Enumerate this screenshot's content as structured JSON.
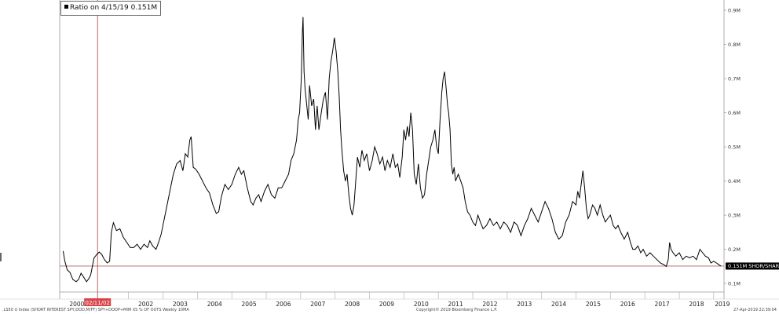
{
  "legend": {
    "label": "Ratio on 4/15/19 0.151M"
  },
  "cursor": {
    "date_label": "02/11/02"
  },
  "last_value": {
    "label": "0.151M SHOR/SHAR"
  },
  "footer": {
    "left": ".LS50 U Index (SHORT INTEREST SPY,DOD,M/FF) SPY+DOOP+MIM XS % OF OUTS  Weekly 10MA",
    "center": "Copyright© 2019 Bloomberg Finance L.P.",
    "right": "27-Apr-2019 22:39:04"
  },
  "chart_data": {
    "type": "line",
    "title": "",
    "xlabel": "",
    "ylabel": "",
    "xlim": [
      2000,
      2019.3
    ],
    "ylim": [
      0.075,
      0.93
    ],
    "y_ticks": [
      {
        "value": 0.1,
        "label": "0.1M"
      },
      {
        "value": 0.2,
        "label": "0.2M"
      },
      {
        "value": 0.3,
        "label": "0.3M"
      },
      {
        "value": 0.4,
        "label": "0.4M"
      },
      {
        "value": 0.5,
        "label": "0.5M"
      },
      {
        "value": 0.6,
        "label": "0.6M"
      },
      {
        "value": 0.7,
        "label": "0.7M"
      },
      {
        "value": 0.8,
        "label": "0.8M"
      },
      {
        "value": 0.9,
        "label": "0.9M"
      }
    ],
    "x_ticks": [
      {
        "value": 2000,
        "label": "2000"
      },
      {
        "value": 2002,
        "label": "2002"
      },
      {
        "value": 2003,
        "label": "2003"
      },
      {
        "value": 2004,
        "label": "2004"
      },
      {
        "value": 2005,
        "label": "2005"
      },
      {
        "value": 2006,
        "label": "2006"
      },
      {
        "value": 2007,
        "label": "2007"
      },
      {
        "value": 2008,
        "label": "2008"
      },
      {
        "value": 2009,
        "label": "2009"
      },
      {
        "value": 2010,
        "label": "2010"
      },
      {
        "value": 2011,
        "label": "2011"
      },
      {
        "value": 2012,
        "label": "2012"
      },
      {
        "value": 2013,
        "label": "2013"
      },
      {
        "value": 2014,
        "label": "2014"
      },
      {
        "value": 2015,
        "label": "2015"
      },
      {
        "value": 2016,
        "label": "2016"
      },
      {
        "value": 2017,
        "label": "2017"
      },
      {
        "value": 2018,
        "label": "2018"
      },
      {
        "value": 2019,
        "label": "2019"
      }
    ],
    "cursor_x": 2001.1,
    "reference_line": 0.151,
    "series": [
      {
        "points": [
          [
            2000.1,
            0.195
          ],
          [
            2000.15,
            0.165
          ],
          [
            2000.22,
            0.14
          ],
          [
            2000.3,
            0.132
          ],
          [
            2000.38,
            0.112
          ],
          [
            2000.48,
            0.105
          ],
          [
            2000.55,
            0.112
          ],
          [
            2000.62,
            0.13
          ],
          [
            2000.7,
            0.118
          ],
          [
            2000.78,
            0.105
          ],
          [
            2000.85,
            0.115
          ],
          [
            2000.9,
            0.125
          ],
          [
            2000.95,
            0.15
          ],
          [
            2001.0,
            0.175
          ],
          [
            2001.08,
            0.185
          ],
          [
            2001.15,
            0.192
          ],
          [
            2001.22,
            0.185
          ],
          [
            2001.3,
            0.17
          ],
          [
            2001.38,
            0.16
          ],
          [
            2001.45,
            0.165
          ],
          [
            2001.5,
            0.25
          ],
          [
            2001.56,
            0.278
          ],
          [
            2001.65,
            0.255
          ],
          [
            2001.75,
            0.26
          ],
          [
            2001.85,
            0.235
          ],
          [
            2001.95,
            0.22
          ],
          [
            2002.05,
            0.205
          ],
          [
            2002.15,
            0.205
          ],
          [
            2002.25,
            0.215
          ],
          [
            2002.35,
            0.2
          ],
          [
            2002.45,
            0.215
          ],
          [
            2002.55,
            0.205
          ],
          [
            2002.62,
            0.225
          ],
          [
            2002.7,
            0.21
          ],
          [
            2002.8,
            0.2
          ],
          [
            2002.88,
            0.222
          ],
          [
            2002.95,
            0.245
          ],
          [
            2003.0,
            0.27
          ],
          [
            2003.1,
            0.32
          ],
          [
            2003.2,
            0.37
          ],
          [
            2003.3,
            0.42
          ],
          [
            2003.4,
            0.45
          ],
          [
            2003.5,
            0.46
          ],
          [
            2003.58,
            0.43
          ],
          [
            2003.65,
            0.48
          ],
          [
            2003.72,
            0.47
          ],
          [
            2003.78,
            0.52
          ],
          [
            2003.82,
            0.53
          ],
          [
            2003.88,
            0.44
          ],
          [
            2003.95,
            0.435
          ],
          [
            2004.05,
            0.42
          ],
          [
            2004.15,
            0.4
          ],
          [
            2004.25,
            0.38
          ],
          [
            2004.35,
            0.365
          ],
          [
            2004.45,
            0.33
          ],
          [
            2004.55,
            0.305
          ],
          [
            2004.62,
            0.31
          ],
          [
            2004.7,
            0.355
          ],
          [
            2004.8,
            0.39
          ],
          [
            2004.9,
            0.375
          ],
          [
            2005.0,
            0.39
          ],
          [
            2005.1,
            0.42
          ],
          [
            2005.2,
            0.44
          ],
          [
            2005.28,
            0.42
          ],
          [
            2005.35,
            0.43
          ],
          [
            2005.45,
            0.38
          ],
          [
            2005.55,
            0.34
          ],
          [
            2005.62,
            0.33
          ],
          [
            2005.7,
            0.35
          ],
          [
            2005.78,
            0.36
          ],
          [
            2005.85,
            0.34
          ],
          [
            2005.95,
            0.37
          ],
          [
            2006.05,
            0.39
          ],
          [
            2006.15,
            0.36
          ],
          [
            2006.25,
            0.35
          ],
          [
            2006.35,
            0.38
          ],
          [
            2006.45,
            0.38
          ],
          [
            2006.55,
            0.4
          ],
          [
            2006.65,
            0.42
          ],
          [
            2006.72,
            0.46
          ],
          [
            2006.8,
            0.48
          ],
          [
            2006.88,
            0.52
          ],
          [
            2006.93,
            0.58
          ],
          [
            2006.97,
            0.6
          ],
          [
            2007.02,
            0.7
          ],
          [
            2007.05,
            0.83
          ],
          [
            2007.07,
            0.88
          ],
          [
            2007.1,
            0.72
          ],
          [
            2007.13,
            0.67
          ],
          [
            2007.18,
            0.62
          ],
          [
            2007.22,
            0.58
          ],
          [
            2007.26,
            0.68
          ],
          [
            2007.32,
            0.62
          ],
          [
            2007.38,
            0.64
          ],
          [
            2007.43,
            0.55
          ],
          [
            2007.48,
            0.62
          ],
          [
            2007.53,
            0.55
          ],
          [
            2007.6,
            0.6
          ],
          [
            2007.66,
            0.64
          ],
          [
            2007.72,
            0.66
          ],
          [
            2007.78,
            0.58
          ],
          [
            2007.83,
            0.7
          ],
          [
            2007.88,
            0.75
          ],
          [
            2007.93,
            0.78
          ],
          [
            2007.98,
            0.82
          ],
          [
            2008.03,
            0.78
          ],
          [
            2008.08,
            0.72
          ],
          [
            2008.12,
            0.65
          ],
          [
            2008.16,
            0.55
          ],
          [
            2008.2,
            0.49
          ],
          [
            2008.25,
            0.43
          ],
          [
            2008.3,
            0.4
          ],
          [
            2008.35,
            0.42
          ],
          [
            2008.4,
            0.36
          ],
          [
            2008.45,
            0.32
          ],
          [
            2008.5,
            0.3
          ],
          [
            2008.55,
            0.33
          ],
          [
            2008.6,
            0.4
          ],
          [
            2008.65,
            0.47
          ],
          [
            2008.72,
            0.44
          ],
          [
            2008.78,
            0.49
          ],
          [
            2008.85,
            0.46
          ],
          [
            2008.92,
            0.48
          ],
          [
            2009.0,
            0.43
          ],
          [
            2009.08,
            0.46
          ],
          [
            2009.15,
            0.5
          ],
          [
            2009.22,
            0.48
          ],
          [
            2009.3,
            0.45
          ],
          [
            2009.38,
            0.47
          ],
          [
            2009.45,
            0.43
          ],
          [
            2009.52,
            0.46
          ],
          [
            2009.6,
            0.44
          ],
          [
            2009.68,
            0.48
          ],
          [
            2009.75,
            0.44
          ],
          [
            2009.82,
            0.45
          ],
          [
            2009.88,
            0.41
          ],
          [
            2009.95,
            0.47
          ],
          [
            2010.0,
            0.55
          ],
          [
            2010.05,
            0.52
          ],
          [
            2010.1,
            0.56
          ],
          [
            2010.15,
            0.53
          ],
          [
            2010.2,
            0.6
          ],
          [
            2010.25,
            0.55
          ],
          [
            2010.3,
            0.42
          ],
          [
            2010.36,
            0.39
          ],
          [
            2010.42,
            0.45
          ],
          [
            2010.48,
            0.38
          ],
          [
            2010.54,
            0.35
          ],
          [
            2010.6,
            0.36
          ],
          [
            2010.66,
            0.42
          ],
          [
            2010.72,
            0.46
          ],
          [
            2010.78,
            0.5
          ],
          [
            2010.84,
            0.52
          ],
          [
            2010.9,
            0.55
          ],
          [
            2010.95,
            0.5
          ],
          [
            2011.0,
            0.48
          ],
          [
            2011.05,
            0.58
          ],
          [
            2011.1,
            0.66
          ],
          [
            2011.14,
            0.7
          ],
          [
            2011.18,
            0.72
          ],
          [
            2011.22,
            0.68
          ],
          [
            2011.27,
            0.62
          ],
          [
            2011.3,
            0.6
          ],
          [
            2011.34,
            0.55
          ],
          [
            2011.38,
            0.45
          ],
          [
            2011.42,
            0.42
          ],
          [
            2011.46,
            0.44
          ],
          [
            2011.5,
            0.4
          ],
          [
            2011.58,
            0.42
          ],
          [
            2011.65,
            0.4
          ],
          [
            2011.72,
            0.38
          ],
          [
            2011.78,
            0.34
          ],
          [
            2011.85,
            0.31
          ],
          [
            2011.92,
            0.3
          ],
          [
            2012.0,
            0.28
          ],
          [
            2012.08,
            0.27
          ],
          [
            2012.15,
            0.3
          ],
          [
            2012.22,
            0.28
          ],
          [
            2012.3,
            0.26
          ],
          [
            2012.4,
            0.27
          ],
          [
            2012.5,
            0.29
          ],
          [
            2012.6,
            0.27
          ],
          [
            2012.7,
            0.28
          ],
          [
            2012.8,
            0.26
          ],
          [
            2012.9,
            0.28
          ],
          [
            2013.0,
            0.27
          ],
          [
            2013.1,
            0.25
          ],
          [
            2013.2,
            0.28
          ],
          [
            2013.3,
            0.27
          ],
          [
            2013.4,
            0.24
          ],
          [
            2013.5,
            0.27
          ],
          [
            2013.6,
            0.29
          ],
          [
            2013.7,
            0.32
          ],
          [
            2013.8,
            0.3
          ],
          [
            2013.9,
            0.28
          ],
          [
            2014.0,
            0.31
          ],
          [
            2014.1,
            0.34
          ],
          [
            2014.2,
            0.32
          ],
          [
            2014.3,
            0.29
          ],
          [
            2014.4,
            0.25
          ],
          [
            2014.5,
            0.23
          ],
          [
            2014.6,
            0.24
          ],
          [
            2014.7,
            0.28
          ],
          [
            2014.8,
            0.3
          ],
          [
            2014.9,
            0.34
          ],
          [
            2015.0,
            0.33
          ],
          [
            2015.05,
            0.37
          ],
          [
            2015.1,
            0.35
          ],
          [
            2015.15,
            0.39
          ],
          [
            2015.2,
            0.43
          ],
          [
            2015.25,
            0.38
          ],
          [
            2015.3,
            0.32
          ],
          [
            2015.35,
            0.29
          ],
          [
            2015.4,
            0.3
          ],
          [
            2015.48,
            0.33
          ],
          [
            2015.55,
            0.32
          ],
          [
            2015.62,
            0.3
          ],
          [
            2015.7,
            0.33
          ],
          [
            2015.78,
            0.3
          ],
          [
            2015.85,
            0.28
          ],
          [
            2015.92,
            0.29
          ],
          [
            2016.0,
            0.3
          ],
          [
            2016.08,
            0.27
          ],
          [
            2016.15,
            0.26
          ],
          [
            2016.22,
            0.27
          ],
          [
            2016.3,
            0.25
          ],
          [
            2016.4,
            0.23
          ],
          [
            2016.5,
            0.25
          ],
          [
            2016.58,
            0.22
          ],
          [
            2016.65,
            0.2
          ],
          [
            2016.72,
            0.2
          ],
          [
            2016.8,
            0.21
          ],
          [
            2016.88,
            0.19
          ],
          [
            2016.95,
            0.2
          ],
          [
            2017.05,
            0.18
          ],
          [
            2017.15,
            0.19
          ],
          [
            2017.25,
            0.18
          ],
          [
            2017.35,
            0.17
          ],
          [
            2017.45,
            0.16
          ],
          [
            2017.55,
            0.155
          ],
          [
            2017.62,
            0.15
          ],
          [
            2017.68,
            0.17
          ],
          [
            2017.72,
            0.22
          ],
          [
            2017.76,
            0.2
          ],
          [
            2017.82,
            0.19
          ],
          [
            2017.9,
            0.18
          ],
          [
            2018.0,
            0.19
          ],
          [
            2018.1,
            0.17
          ],
          [
            2018.2,
            0.18
          ],
          [
            2018.3,
            0.175
          ],
          [
            2018.4,
            0.18
          ],
          [
            2018.5,
            0.17
          ],
          [
            2018.6,
            0.2
          ],
          [
            2018.68,
            0.19
          ],
          [
            2018.76,
            0.18
          ],
          [
            2018.85,
            0.175
          ],
          [
            2018.92,
            0.16
          ],
          [
            2019.0,
            0.165
          ],
          [
            2019.08,
            0.16
          ],
          [
            2019.15,
            0.155
          ],
          [
            2019.21,
            0.151
          ]
        ]
      }
    ]
  }
}
